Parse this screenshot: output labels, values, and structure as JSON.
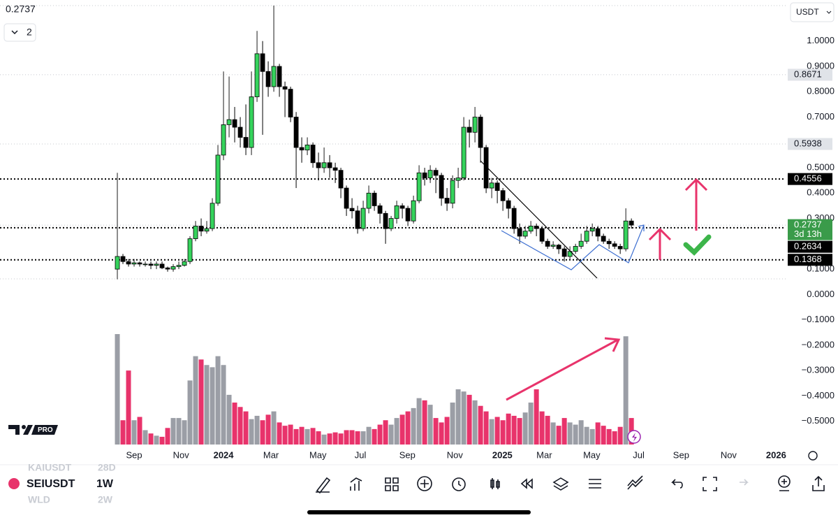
{
  "chart_data": {
    "type": "candlestick",
    "symbol": "SEIUSDT",
    "interval": "1W",
    "currency": "USDT",
    "top_price": "0.2737",
    "pane_count": "2",
    "up_color": "#35d35c",
    "down_color": "#000000",
    "volume_up_color": "#9b9ea6",
    "volume_down_color": "#e8336b",
    "open": [
      0.1,
      0.15,
      0.13,
      0.12,
      0.125,
      0.12,
      0.12,
      0.115,
      0.12,
      0.105,
      0.1,
      0.11,
      0.115,
      0.13,
      0.22,
      0.27,
      0.25,
      0.26,
      0.36,
      0.55,
      0.67,
      0.69,
      0.66,
      0.62,
      0.58,
      0.78,
      0.95,
      0.88,
      0.82,
      0.9,
      0.82,
      0.81,
      0.7,
      0.58,
      0.57,
      0.59,
      0.52,
      0.5,
      0.52,
      0.5,
      0.49,
      0.42,
      0.34,
      0.33,
      0.26,
      0.34,
      0.4,
      0.35,
      0.32,
      0.26,
      0.3,
      0.35,
      0.34,
      0.29,
      0.37,
      0.48,
      0.46,
      0.49,
      0.47,
      0.38,
      0.36,
      0.45,
      0.46,
      0.66,
      0.64,
      0.7,
      0.58,
      0.42,
      0.44,
      0.41,
      0.37,
      0.34,
      0.26,
      0.23,
      0.25,
      0.27,
      0.26,
      0.21,
      0.19,
      0.195,
      0.18,
      0.15,
      0.17,
      0.19,
      0.21,
      0.25,
      0.26,
      0.23,
      0.21,
      0.2,
      0.19,
      0.18,
      0.29
    ],
    "high": [
      0.48,
      0.16,
      0.14,
      0.14,
      0.13,
      0.13,
      0.13,
      0.13,
      0.13,
      0.11,
      0.12,
      0.13,
      0.14,
      0.23,
      0.29,
      0.3,
      0.29,
      0.38,
      0.59,
      0.88,
      0.86,
      0.74,
      0.7,
      0.75,
      0.88,
      1.04,
      1.0,
      0.92,
      1.14,
      0.91,
      0.84,
      0.82,
      0.72,
      0.62,
      0.62,
      0.6,
      0.56,
      0.58,
      0.55,
      0.52,
      0.5,
      0.43,
      0.38,
      0.35,
      0.37,
      0.43,
      0.41,
      0.36,
      0.33,
      0.31,
      0.37,
      0.36,
      0.35,
      0.39,
      0.51,
      0.5,
      0.51,
      0.5,
      0.48,
      0.42,
      0.47,
      0.5,
      0.7,
      0.69,
      0.74,
      0.71,
      0.59,
      0.46,
      0.45,
      0.42,
      0.38,
      0.35,
      0.28,
      0.27,
      0.29,
      0.28,
      0.27,
      0.22,
      0.21,
      0.2,
      0.19,
      0.19,
      0.2,
      0.24,
      0.27,
      0.28,
      0.27,
      0.24,
      0.22,
      0.21,
      0.2,
      0.34,
      0.3
    ],
    "low": [
      0.06,
      0.12,
      0.11,
      0.11,
      0.11,
      0.11,
      0.1,
      0.1,
      0.1,
      0.09,
      0.09,
      0.1,
      0.11,
      0.12,
      0.21,
      0.23,
      0.24,
      0.25,
      0.35,
      0.53,
      0.62,
      0.6,
      0.58,
      0.55,
      0.55,
      0.76,
      0.63,
      0.78,
      0.8,
      0.78,
      0.7,
      0.68,
      0.42,
      0.52,
      0.55,
      0.5,
      0.45,
      0.48,
      0.46,
      0.44,
      0.38,
      0.31,
      0.3,
      0.24,
      0.25,
      0.32,
      0.33,
      0.28,
      0.2,
      0.25,
      0.28,
      0.3,
      0.27,
      0.28,
      0.36,
      0.43,
      0.44,
      0.4,
      0.35,
      0.33,
      0.34,
      0.42,
      0.45,
      0.58,
      0.6,
      0.52,
      0.4,
      0.38,
      0.36,
      0.33,
      0.3,
      0.24,
      0.2,
      0.22,
      0.24,
      0.23,
      0.2,
      0.18,
      0.18,
      0.16,
      0.13,
      0.14,
      0.16,
      0.18,
      0.2,
      0.23,
      0.21,
      0.2,
      0.18,
      0.18,
      0.16,
      0.17,
      0.26
    ],
    "close": [
      0.15,
      0.13,
      0.12,
      0.125,
      0.12,
      0.12,
      0.115,
      0.12,
      0.105,
      0.1,
      0.11,
      0.115,
      0.13,
      0.22,
      0.27,
      0.25,
      0.26,
      0.36,
      0.55,
      0.67,
      0.69,
      0.66,
      0.62,
      0.58,
      0.78,
      0.95,
      0.88,
      0.82,
      0.9,
      0.82,
      0.81,
      0.7,
      0.58,
      0.57,
      0.59,
      0.52,
      0.5,
      0.52,
      0.5,
      0.49,
      0.42,
      0.34,
      0.33,
      0.26,
      0.34,
      0.4,
      0.35,
      0.32,
      0.26,
      0.3,
      0.35,
      0.34,
      0.29,
      0.37,
      0.48,
      0.46,
      0.49,
      0.47,
      0.38,
      0.36,
      0.45,
      0.46,
      0.66,
      0.64,
      0.7,
      0.58,
      0.42,
      0.44,
      0.41,
      0.37,
      0.34,
      0.26,
      0.23,
      0.25,
      0.27,
      0.26,
      0.21,
      0.19,
      0.195,
      0.18,
      0.15,
      0.17,
      0.19,
      0.21,
      0.25,
      0.26,
      0.23,
      0.21,
      0.2,
      0.19,
      0.18,
      0.29,
      0.2737
    ],
    "volume": [
      100,
      22,
      67,
      22,
      25,
      13,
      10,
      8,
      7,
      15,
      24,
      24,
      22,
      58,
      80,
      77,
      72,
      70,
      80,
      72,
      45,
      38,
      34,
      30,
      23,
      26,
      22,
      27,
      30,
      20,
      17,
      18,
      14,
      16,
      14,
      15,
      12,
      9,
      10,
      11,
      10,
      13,
      13,
      12,
      12,
      16,
      14,
      18,
      22,
      18,
      24,
      27,
      30,
      33,
      42,
      40,
      36,
      24,
      20,
      25,
      38,
      50,
      48,
      45,
      40,
      35,
      30,
      23,
      25,
      22,
      28,
      26,
      24,
      29,
      38,
      50,
      30,
      26,
      20,
      17,
      24,
      20,
      18,
      22,
      16,
      14,
      20,
      17,
      14,
      12,
      16,
      98,
      24
    ],
    "vlim": [
      0,
      100
    ],
    "ylim": [
      -0.592,
      1.162
    ],
    "yticks": [
      {
        "value": 1,
        "label": "1.0000"
      },
      {
        "value": 0.9,
        "label": "0.9000"
      },
      {
        "value": 0.8,
        "label": "0.8000"
      },
      {
        "value": 0.7,
        "label": "0.7000"
      },
      {
        "value": 0.5,
        "label": "0.5000"
      },
      {
        "value": 0.4,
        "label": "0.4000"
      },
      {
        "value": 0.3,
        "label": "0.3000"
      },
      {
        "value": 0.1,
        "label": "0.1000"
      },
      {
        "value": 0,
        "label": "0.0000"
      },
      {
        "value": -0.1,
        "label": "−0.1000"
      },
      {
        "value": -0.2,
        "label": "−0.2000"
      },
      {
        "value": -0.3,
        "label": "−0.3000"
      },
      {
        "value": -0.4,
        "label": "−0.4000"
      },
      {
        "value": -0.5,
        "label": "−0.5000"
      }
    ],
    "xlim": [
      -21,
      119.6
    ],
    "xticks": [
      {
        "value": 3,
        "label": "Sep"
      },
      {
        "value": 11.4,
        "label": "Nov"
      },
      {
        "value": 19,
        "label": "2024"
      },
      {
        "value": 27.5,
        "label": "Mar"
      },
      {
        "value": 35.9,
        "label": "May"
      },
      {
        "value": 43.5,
        "label": "Jul"
      },
      {
        "value": 51.9,
        "label": "Sep"
      },
      {
        "value": 60.4,
        "label": "Nov"
      },
      {
        "value": 68.9,
        "label": "2025"
      },
      {
        "value": 76.4,
        "label": "Mar"
      },
      {
        "value": 84.9,
        "label": "May"
      },
      {
        "value": 93.3,
        "label": "Jul"
      },
      {
        "value": 100.9,
        "label": "Sep"
      },
      {
        "value": 109.4,
        "label": "Nov"
      },
      {
        "value": 117.9,
        "label": "2026"
      }
    ],
    "price_tags": [
      {
        "value": 0.8671,
        "label": "0.8671",
        "style": "gray"
      },
      {
        "value": 0.5938,
        "label": "0.5938",
        "style": "gray"
      },
      {
        "value": 0.4556,
        "label": "0.4556",
        "style": "black"
      },
      {
        "value": 0.2737,
        "label": "0.2737",
        "sub": "3d 13h",
        "style": "green"
      },
      {
        "value": 0.2634,
        "label": "0.2634",
        "style": "black"
      },
      {
        "value": 0.1368,
        "label": "0.1368",
        "style": "black"
      }
    ],
    "watchlist_above": "KAIUSDT",
    "watchlist_above_interval": "28D",
    "watchlist_below": "WLD",
    "watchlist_below_interval": "2W",
    "logo_badge": "PRO"
  }
}
